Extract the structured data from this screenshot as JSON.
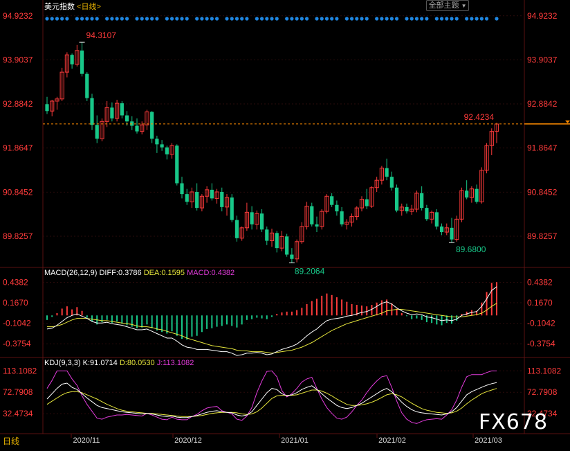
{
  "header": {
    "symbol": "美元指数",
    "period": "<日线>",
    "theme_button": "全部主题",
    "theme_arrow": "▼"
  },
  "colors": {
    "up": "#ff3b3b",
    "down": "#18c889",
    "bg": "#000000",
    "grid": "#2a0b0b",
    "axis_text_red": "#ff3b3b",
    "diff": "#ffffff",
    "dea": "#e6e63c",
    "j": "#e23bdb",
    "last_line": "#ff8c00",
    "dots": "#1f86e0"
  },
  "price_axis": [
    "94.9232",
    "93.9037",
    "92.8842",
    "91.8647",
    "90.8452",
    "89.8257"
  ],
  "macd_panel": {
    "title": "MACD(26,12,9)",
    "diff": "DIFF:0.3786",
    "dea": "DEA:0.1595",
    "macd": "MACD:0.4382",
    "axis": [
      "0.4382",
      "0.1670",
      "-0.1042",
      "-0.3754"
    ]
  },
  "kdj_panel": {
    "title": "KDJ(9,3,3)",
    "k": "K:91.0714",
    "d": "D:80.0530",
    "j": "J:113.1082",
    "axis": [
      "113.1082",
      "72.7908",
      "32.4734"
    ]
  },
  "x_axis": [
    "2020/11",
    "2020/12",
    "2021/01",
    "2021/02",
    "2021/03"
  ],
  "period_label": "日线",
  "watermark": "FX678",
  "chart_data": {
    "type": "candlestick",
    "price_range": [
      89.2,
      95.0
    ],
    "annotations": {
      "high": "94.3107",
      "low_mid": "89.2064",
      "low_late": "89.6800",
      "last": "92.4234"
    },
    "candles": [
      [
        92.88,
        93.05,
        92.65,
        92.72
      ],
      [
        92.72,
        92.98,
        92.6,
        92.95
      ],
      [
        92.95,
        93.05,
        92.75,
        93.0
      ],
      [
        93.0,
        93.72,
        92.95,
        93.62
      ],
      [
        93.62,
        94.08,
        93.5,
        94.02
      ],
      [
        94.02,
        94.05,
        93.7,
        93.8
      ],
      [
        93.8,
        94.25,
        93.75,
        94.12
      ],
      [
        94.12,
        94.31,
        93.52,
        93.58
      ],
      [
        93.58,
        93.62,
        92.95,
        93.02
      ],
      [
        93.02,
        93.12,
        92.28,
        92.4
      ],
      [
        92.4,
        92.62,
        91.98,
        92.08
      ],
      [
        92.08,
        92.55,
        92.02,
        92.48
      ],
      [
        92.48,
        92.95,
        92.35,
        92.8
      ],
      [
        92.8,
        92.92,
        92.48,
        92.55
      ],
      [
        92.55,
        92.98,
        92.48,
        92.9
      ],
      [
        92.9,
        92.95,
        92.55,
        92.62
      ],
      [
        92.62,
        92.72,
        92.38,
        92.48
      ],
      [
        92.48,
        92.6,
        92.28,
        92.38
      ],
      [
        92.38,
        92.55,
        92.2,
        92.25
      ],
      [
        92.25,
        92.48,
        92.18,
        92.4
      ],
      [
        92.4,
        92.75,
        92.28,
        92.7
      ],
      [
        92.7,
        92.72,
        91.98,
        92.08
      ],
      [
        92.08,
        92.15,
        91.75,
        91.95
      ],
      [
        91.95,
        92.05,
        91.8,
        91.88
      ],
      [
        91.88,
        91.92,
        91.6,
        91.72
      ],
      [
        91.72,
        91.98,
        91.62,
        91.92
      ],
      [
        91.92,
        91.95,
        91.0,
        91.05
      ],
      [
        91.05,
        91.2,
        90.7,
        90.8
      ],
      [
        90.8,
        90.92,
        90.55,
        90.62
      ],
      [
        90.62,
        90.95,
        90.48,
        90.85
      ],
      [
        90.85,
        91.05,
        90.42,
        90.48
      ],
      [
        90.48,
        90.8,
        90.4,
        90.75
      ],
      [
        90.75,
        90.98,
        90.6,
        90.9
      ],
      [
        90.9,
        91.05,
        90.65,
        90.7
      ],
      [
        90.7,
        90.92,
        90.58,
        90.85
      ],
      [
        90.85,
        90.95,
        90.4,
        90.5
      ],
      [
        90.5,
        90.8,
        90.3,
        90.72
      ],
      [
        90.72,
        90.8,
        90.15,
        90.2
      ],
      [
        90.2,
        90.3,
        89.7,
        89.78
      ],
      [
        89.78,
        90.05,
        89.72,
        90.02
      ],
      [
        90.02,
        90.6,
        89.95,
        90.38
      ],
      [
        90.38,
        90.52,
        89.98,
        90.1
      ],
      [
        90.1,
        90.42,
        89.98,
        90.35
      ],
      [
        90.35,
        90.45,
        89.92,
        89.98
      ],
      [
        89.98,
        90.05,
        89.62,
        89.72
      ],
      [
        89.72,
        90.0,
        89.58,
        89.9
      ],
      [
        89.9,
        89.95,
        89.45,
        89.55
      ],
      [
        89.55,
        89.95,
        89.48,
        89.82
      ],
      [
        89.82,
        89.88,
        89.35,
        89.4
      ],
      [
        89.4,
        89.55,
        89.21,
        89.3
      ],
      [
        89.3,
        89.75,
        89.22,
        89.7
      ],
      [
        89.7,
        90.15,
        89.65,
        90.05
      ],
      [
        90.05,
        90.62,
        89.98,
        90.52
      ],
      [
        90.52,
        90.6,
        90.05,
        90.1
      ],
      [
        90.1,
        90.28,
        89.92,
        90.05
      ],
      [
        90.05,
        90.45,
        89.98,
        90.4
      ],
      [
        90.4,
        90.8,
        90.35,
        90.75
      ],
      [
        90.75,
        90.82,
        90.5,
        90.55
      ],
      [
        90.55,
        90.65,
        90.3,
        90.4
      ],
      [
        90.4,
        90.5,
        90.05,
        90.1
      ],
      [
        90.1,
        90.22,
        89.98,
        90.15
      ],
      [
        90.15,
        90.35,
        90.05,
        90.28
      ],
      [
        90.28,
        90.52,
        90.2,
        90.48
      ],
      [
        90.48,
        90.75,
        90.4,
        90.68
      ],
      [
        90.68,
        90.92,
        90.45,
        90.52
      ],
      [
        90.52,
        90.98,
        90.48,
        90.95
      ],
      [
        90.95,
        91.2,
        90.85,
        91.12
      ],
      [
        91.12,
        91.45,
        91.02,
        91.4
      ],
      [
        91.4,
        91.62,
        91.12,
        91.2
      ],
      [
        91.2,
        91.32,
        90.88,
        90.95
      ],
      [
        90.95,
        91.02,
        90.38,
        90.42
      ],
      [
        90.42,
        90.58,
        90.3,
        90.5
      ],
      [
        90.5,
        90.58,
        90.35,
        90.4
      ],
      [
        90.4,
        90.55,
        90.32,
        90.45
      ],
      [
        90.45,
        90.88,
        90.38,
        90.82
      ],
      [
        90.82,
        90.98,
        90.42,
        90.48
      ],
      [
        90.48,
        90.55,
        90.18,
        90.22
      ],
      [
        90.22,
        90.42,
        90.12,
        90.38
      ],
      [
        90.38,
        90.45,
        89.98,
        90.05
      ],
      [
        90.05,
        90.12,
        89.85,
        89.92
      ],
      [
        89.92,
        90.12,
        89.85,
        90.02
      ],
      [
        90.02,
        90.25,
        89.68,
        89.75
      ],
      [
        89.75,
        90.3,
        89.7,
        90.22
      ],
      [
        90.22,
        90.95,
        90.15,
        90.88
      ],
      [
        90.88,
        91.12,
        90.68,
        90.72
      ],
      [
        90.72,
        90.98,
        90.6,
        90.92
      ],
      [
        90.92,
        91.02,
        90.58,
        90.62
      ],
      [
        90.62,
        91.42,
        90.58,
        91.35
      ],
      [
        91.35,
        91.98,
        91.28,
        91.92
      ],
      [
        91.92,
        92.32,
        91.7,
        92.25
      ],
      [
        92.25,
        92.45,
        91.98,
        92.42
      ]
    ],
    "macd": {
      "hist": [
        -0.06,
        -0.02,
        0.03,
        0.09,
        0.12,
        0.08,
        0.11,
        0.06,
        -0.03,
        -0.08,
        -0.12,
        -0.09,
        -0.06,
        -0.1,
        -0.08,
        -0.11,
        -0.13,
        -0.15,
        -0.17,
        -0.16,
        -0.12,
        -0.17,
        -0.2,
        -0.22,
        -0.24,
        -0.21,
        -0.27,
        -0.31,
        -0.32,
        -0.28,
        -0.27,
        -0.22,
        -0.18,
        -0.17,
        -0.15,
        -0.14,
        -0.12,
        -0.14,
        -0.16,
        -0.12,
        -0.06,
        -0.05,
        -0.03,
        -0.04,
        -0.05,
        -0.02,
        0.02,
        0.04,
        0.05,
        0.05,
        0.07,
        0.1,
        0.15,
        0.19,
        0.22,
        0.26,
        0.29,
        0.27,
        0.24,
        0.21,
        0.18,
        0.15,
        0.14,
        0.13,
        0.12,
        0.14,
        0.17,
        0.2,
        0.21,
        0.16,
        0.09,
        0.03,
        -0.01,
        -0.05,
        -0.04,
        -0.06,
        -0.09,
        -0.1,
        -0.12,
        -0.13,
        -0.1,
        -0.11,
        -0.07,
        0.02,
        0.05,
        0.07,
        0.06,
        0.17,
        0.31,
        0.43,
        0.44
      ],
      "diff": [
        -0.18,
        -0.17,
        -0.13,
        -0.08,
        -0.03,
        0.0,
        0.02,
        -0.01,
        -0.04,
        -0.08,
        -0.1,
        -0.1,
        -0.09,
        -0.11,
        -0.12,
        -0.13,
        -0.15,
        -0.17,
        -0.19,
        -0.19,
        -0.18,
        -0.21,
        -0.24,
        -0.27,
        -0.3,
        -0.3,
        -0.34,
        -0.39,
        -0.42,
        -0.43,
        -0.45,
        -0.45,
        -0.45,
        -0.46,
        -0.47,
        -0.48,
        -0.48,
        -0.5,
        -0.53,
        -0.52,
        -0.5,
        -0.5,
        -0.49,
        -0.5,
        -0.52,
        -0.51,
        -0.48,
        -0.45,
        -0.43,
        -0.41,
        -0.38,
        -0.33,
        -0.27,
        -0.22,
        -0.18,
        -0.12,
        -0.07,
        -0.05,
        -0.04,
        -0.03,
        -0.01,
        0.0,
        0.02,
        0.04,
        0.05,
        0.08,
        0.12,
        0.16,
        0.18,
        0.15,
        0.1,
        0.06,
        0.03,
        0.01,
        0.02,
        0.01,
        -0.02,
        -0.03,
        -0.05,
        -0.07,
        -0.06,
        -0.07,
        -0.05,
        0.0,
        0.02,
        0.04,
        0.05,
        0.12,
        0.22,
        0.33,
        0.38
      ],
      "dea": [
        -0.15,
        -0.15,
        -0.14,
        -0.12,
        -0.09,
        -0.06,
        -0.04,
        -0.04,
        -0.04,
        -0.05,
        -0.06,
        -0.07,
        -0.07,
        -0.08,
        -0.09,
        -0.1,
        -0.11,
        -0.12,
        -0.14,
        -0.15,
        -0.15,
        -0.16,
        -0.18,
        -0.19,
        -0.21,
        -0.23,
        -0.25,
        -0.27,
        -0.3,
        -0.32,
        -0.34,
        -0.36,
        -0.38,
        -0.4,
        -0.41,
        -0.42,
        -0.43,
        -0.44,
        -0.46,
        -0.47,
        -0.47,
        -0.48,
        -0.48,
        -0.48,
        -0.49,
        -0.5,
        -0.49,
        -0.48,
        -0.47,
        -0.46,
        -0.44,
        -0.42,
        -0.39,
        -0.36,
        -0.32,
        -0.28,
        -0.24,
        -0.2,
        -0.17,
        -0.14,
        -0.11,
        -0.09,
        -0.07,
        -0.05,
        -0.03,
        -0.01,
        0.01,
        0.03,
        0.06,
        0.07,
        0.08,
        0.08,
        0.07,
        0.06,
        0.05,
        0.04,
        0.03,
        0.02,
        0.01,
        0.0,
        -0.01,
        -0.02,
        -0.02,
        -0.02,
        -0.01,
        0.0,
        0.01,
        0.03,
        0.07,
        0.12,
        0.16
      ]
    },
    "kdj": {
      "k": [
        60,
        70,
        80,
        88,
        90,
        82,
        78,
        70,
        62,
        55,
        48,
        44,
        42,
        40,
        38,
        36,
        35,
        34,
        33,
        32,
        33,
        32,
        30,
        28,
        27,
        28,
        26,
        25,
        25,
        27,
        29,
        32,
        35,
        37,
        38,
        36,
        35,
        34,
        30,
        28,
        30,
        36,
        48,
        60,
        72,
        80,
        78,
        70,
        66,
        68,
        72,
        78,
        82,
        85,
        78,
        70,
        62,
        55,
        48,
        44,
        42,
        44,
        48,
        52,
        58,
        64,
        70,
        76,
        80,
        74,
        64,
        54,
        46,
        40,
        36,
        34,
        33,
        32,
        31,
        30,
        32,
        36,
        44,
        56,
        68,
        74,
        78,
        82,
        86,
        89,
        91
      ],
      "d": [
        50,
        56,
        62,
        68,
        72,
        74,
        74,
        72,
        68,
        64,
        60,
        55,
        50,
        46,
        42,
        39,
        37,
        36,
        35,
        34,
        33,
        33,
        32,
        31,
        30,
        29,
        28,
        27,
        27,
        27,
        28,
        29,
        31,
        33,
        34,
        35,
        35,
        35,
        34,
        32,
        31,
        32,
        36,
        43,
        52,
        61,
        66,
        67,
        67,
        67,
        68,
        71,
        74,
        77,
        77,
        75,
        71,
        66,
        60,
        55,
        50,
        48,
        48,
        49,
        51,
        54,
        58,
        63,
        68,
        70,
        68,
        64,
        58,
        52,
        47,
        42,
        39,
        37,
        35,
        34,
        33,
        34,
        37,
        43,
        51,
        58,
        64,
        70,
        74,
        77,
        80
      ],
      "j": [
        80,
        95,
        113,
        113,
        113,
        98,
        86,
        66,
        50,
        37,
        24,
        22,
        26,
        28,
        30,
        30,
        31,
        30,
        29,
        28,
        33,
        30,
        26,
        22,
        21,
        26,
        22,
        21,
        21,
        27,
        31,
        38,
        43,
        45,
        46,
        38,
        35,
        32,
        22,
        20,
        28,
        44,
        72,
        94,
        112,
        113,
        102,
        76,
        64,
        70,
        80,
        92,
        98,
        101,
        80,
        60,
        44,
        33,
        24,
        22,
        26,
        36,
        48,
        58,
        72,
        84,
        94,
        102,
        104,
        82,
        56,
        34,
        22,
        16,
        14,
        18,
        21,
        22,
        23,
        22,
        30,
        40,
        58,
        82,
        102,
        106,
        106,
        106,
        110,
        113,
        113
      ]
    }
  }
}
